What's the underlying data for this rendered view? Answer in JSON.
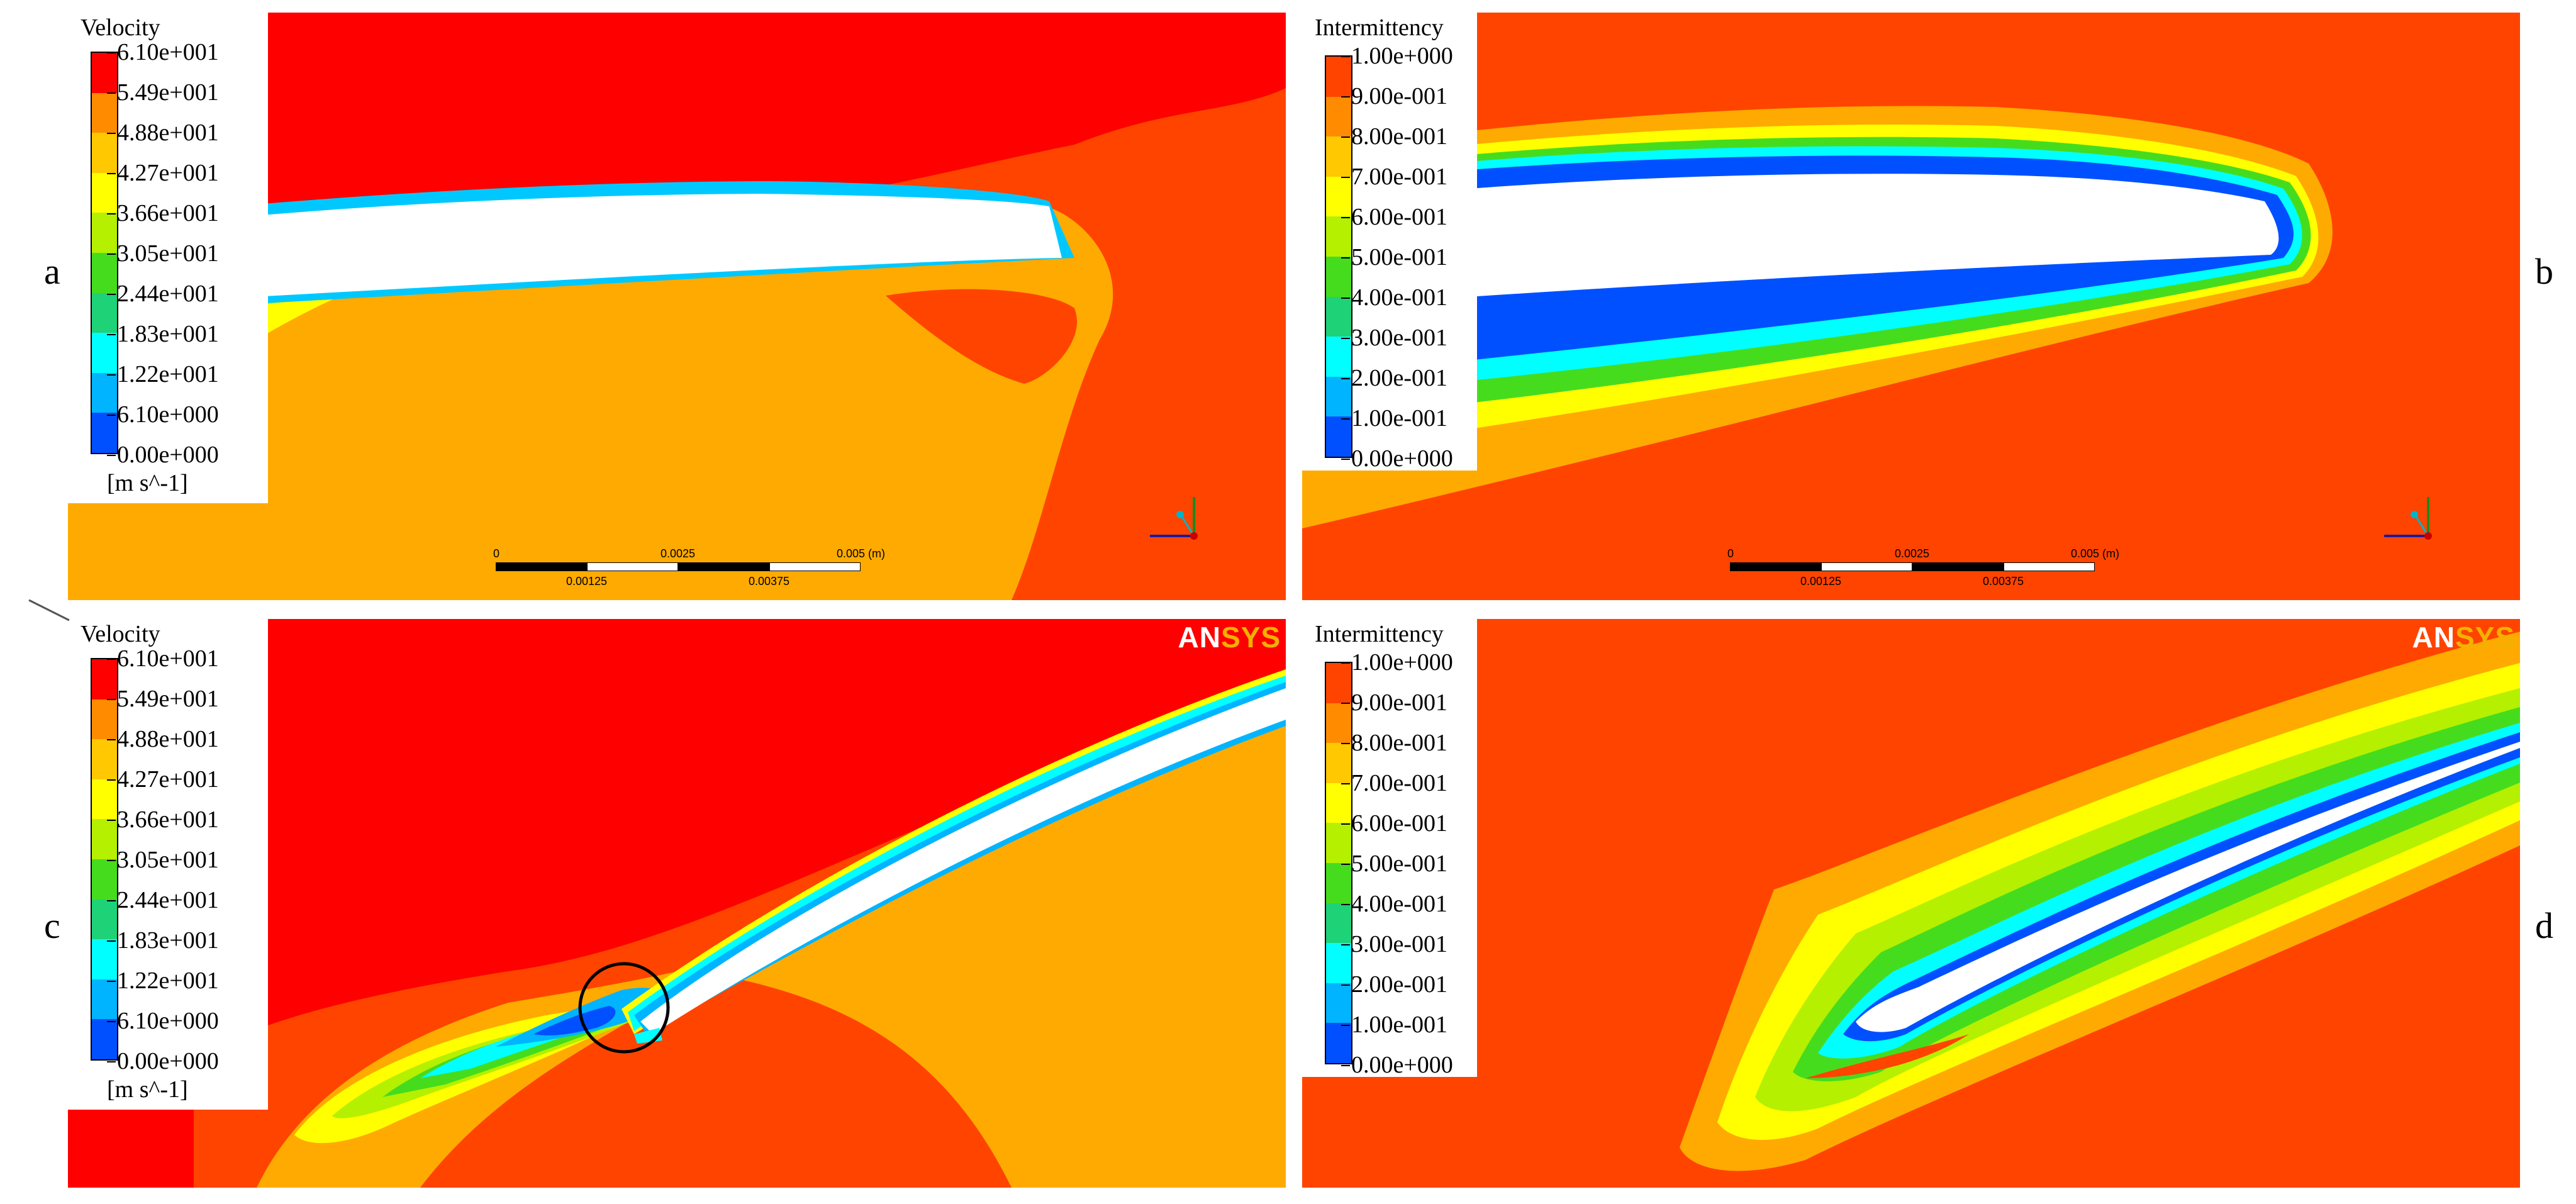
{
  "panels": {
    "a": {
      "letter": "a"
    },
    "b": {
      "letter": "b"
    },
    "c": {
      "letter": "c"
    },
    "d": {
      "letter": "d"
    }
  },
  "legend_velocity": {
    "title": "Velocity",
    "unit": "[m s^-1]",
    "ticks": [
      "6.10e+001",
      "5.49e+001",
      "4.88e+001",
      "4.27e+001",
      "3.66e+001",
      "3.05e+001",
      "2.44e+001",
      "1.83e+001",
      "1.22e+001",
      "6.10e+000",
      "0.00e+000"
    ]
  },
  "legend_intermittency": {
    "title": "Intermittency",
    "ticks": [
      "1.00e+000",
      "9.00e-001",
      "8.00e-001",
      "7.00e-001",
      "6.00e-001",
      "5.00e-001",
      "4.00e-001",
      "3.00e-001",
      "2.00e-001",
      "1.00e-001",
      "0.00e+000"
    ]
  },
  "colormap": [
    "#ff0000",
    "#ff8c00",
    "#ffc800",
    "#ffff00",
    "#b4f000",
    "#46dc1e",
    "#1ed278",
    "#00ffff",
    "#00b4ff",
    "#0050ff"
  ],
  "scalebar": {
    "top_labels": [
      "0",
      "0.0025",
      "0.005 (m)"
    ],
    "bottom_labels": [
      "0.00125",
      "0.00375"
    ]
  },
  "brand": {
    "part1": "AN",
    "part2": "SYS"
  }
}
